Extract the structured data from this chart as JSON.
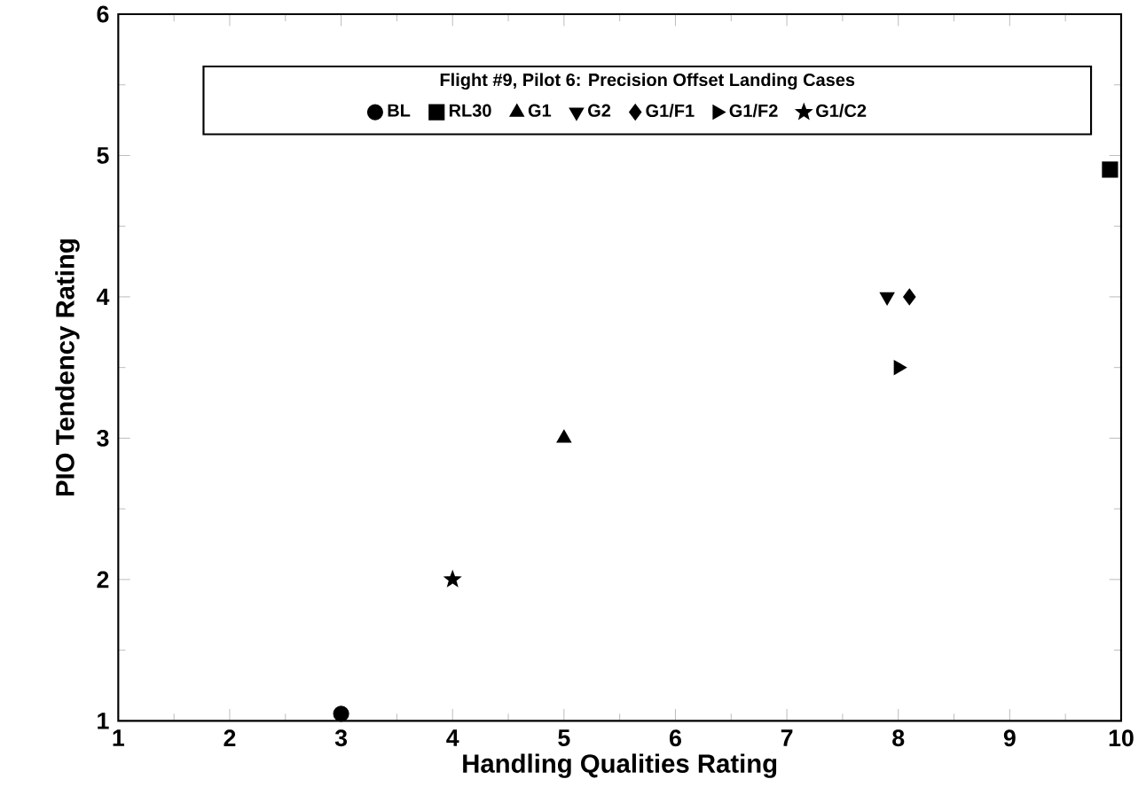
{
  "chart_data": {
    "type": "scatter",
    "legend_title": "Flight #9, Pilot 6: Precision Offset Landing Cases",
    "xlabel": "Handling Qualities Rating",
    "ylabel": "PIO Tendency Rating",
    "xlim": [
      1,
      10
    ],
    "ylim": [
      1,
      6
    ],
    "xticks": [
      1,
      2,
      3,
      4,
      5,
      6,
      7,
      8,
      9,
      10
    ],
    "yticks": [
      1,
      2,
      3,
      4,
      5,
      6
    ],
    "legend": "top",
    "series": [
      {
        "name": "BL",
        "color": "#000000",
        "marker": "circle",
        "x": [
          3
        ],
        "values": [
          1.05
        ]
      },
      {
        "name": "RL30",
        "color": "#000000",
        "marker": "square",
        "x": [
          9.9
        ],
        "values": [
          4.9
        ]
      },
      {
        "name": "G1",
        "color": "#000000",
        "marker": "triangle",
        "x": [
          5
        ],
        "values": [
          3
        ]
      },
      {
        "name": "G2",
        "color": "#000000",
        "marker": "triangle-down",
        "x": [
          7.9
        ],
        "values": [
          4
        ]
      },
      {
        "name": "G1/F1",
        "color": "#000000",
        "marker": "diamond",
        "x": [
          8.1
        ],
        "values": [
          4
        ]
      },
      {
        "name": "G1/F2",
        "color": "#000000",
        "marker": "triangle-right",
        "x": [
          8
        ],
        "values": [
          3.5
        ]
      },
      {
        "name": "G1/C2",
        "color": "#000000",
        "marker": "star",
        "x": [
          4
        ],
        "values": [
          2
        ]
      }
    ]
  }
}
